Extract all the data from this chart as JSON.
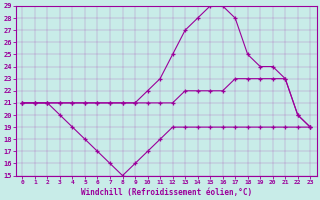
{
  "x": [
    0,
    1,
    2,
    3,
    4,
    5,
    6,
    7,
    8,
    9,
    10,
    11,
    12,
    13,
    14,
    15,
    16,
    17,
    18,
    19,
    20,
    21,
    22,
    23
  ],
  "line_temp": [
    21,
    21,
    21,
    21,
    21,
    21,
    21,
    21,
    21,
    21,
    22,
    23,
    25,
    27,
    28,
    29,
    29,
    28,
    25,
    24,
    24,
    23,
    20,
    19
  ],
  "line_actual": [
    21,
    21,
    21,
    21,
    21,
    21,
    21,
    21,
    21,
    21,
    21,
    21,
    21,
    22,
    22,
    22,
    22,
    23,
    23,
    23,
    23,
    23,
    20,
    19
  ],
  "line_windchill": [
    21,
    21,
    21,
    20,
    19,
    18,
    17,
    16,
    15,
    16,
    17,
    18,
    19,
    19,
    19,
    19,
    19,
    19,
    19,
    19,
    19,
    19,
    19,
    19
  ],
  "color": "#9b009b",
  "bg_color": "#c8ece8",
  "xlabel": "Windchill (Refroidissement éolien,°C)",
  "ylim": [
    15,
    29
  ],
  "xlim_min": -0.5,
  "xlim_max": 23.5,
  "yticks": [
    15,
    16,
    17,
    18,
    19,
    20,
    21,
    22,
    23,
    24,
    25,
    26,
    27,
    28,
    29
  ],
  "xticks": [
    0,
    1,
    2,
    3,
    4,
    5,
    6,
    7,
    8,
    9,
    10,
    11,
    12,
    13,
    14,
    15,
    16,
    17,
    18,
    19,
    20,
    21,
    22,
    23
  ]
}
